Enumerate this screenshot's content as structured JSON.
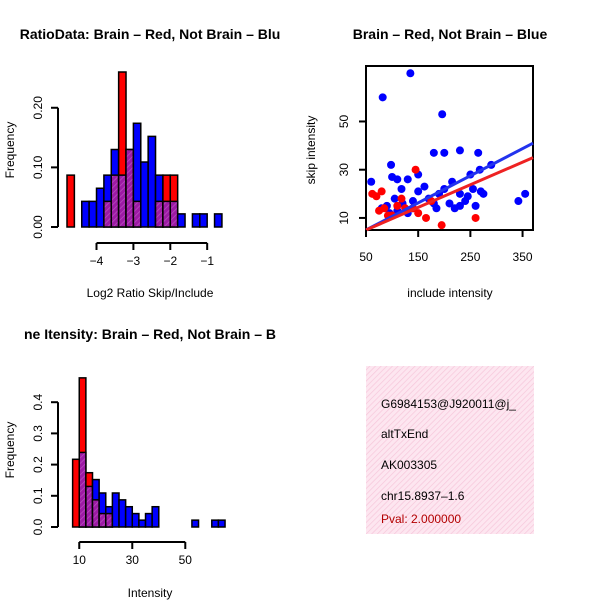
{
  "colors": {
    "red": "#ff0000",
    "blue": "#0000ff",
    "overlap": "#9d1aa5",
    "info_bg": "#fde2ee",
    "pval_text": "#b30000",
    "red_line": "#ee2222",
    "blue_line": "#2233ee"
  },
  "chart_data": [
    {
      "type": "bar",
      "title": "RatioData: Brain – Red, Not Brain – Blu",
      "xlabel": "Log2 Ratio Skip/Include",
      "ylabel": "Frequency",
      "xlim": [
        -4.8,
        -0.3
      ],
      "ylim": [
        0,
        0.26
      ],
      "xticks": [
        -4,
        -3,
        -2,
        -1
      ],
      "xtick_labels": [
        "−4",
        "−3",
        "−2",
        "−1"
      ],
      "yticks": [
        0,
        0.1,
        0.2
      ],
      "ytick_labels": [
        "0.00",
        "0.10",
        "0.20"
      ],
      "bin_width": 0.2,
      "series": [
        {
          "name": "Brain",
          "color": "red",
          "bins": [
            [
              -4.7,
              0.087
            ],
            [
              -3.7,
              0.043
            ],
            [
              -3.5,
              0.087
            ],
            [
              -3.3,
              0.26
            ],
            [
              -3.1,
              0.13
            ],
            [
              -2.9,
              0.043
            ],
            [
              -2.3,
              0.043
            ],
            [
              -2.1,
              0.087
            ],
            [
              -1.9,
              0.087
            ]
          ]
        },
        {
          "name": "Not Brain",
          "color": "blue",
          "bins": [
            [
              -4.3,
              0.043
            ],
            [
              -4.1,
              0.043
            ],
            [
              -3.9,
              0.065
            ],
            [
              -3.7,
              0.087
            ],
            [
              -3.5,
              0.13
            ],
            [
              -3.3,
              0.087
            ],
            [
              -3.1,
              0.13
            ],
            [
              -2.9,
              0.174
            ],
            [
              -2.7,
              0.109
            ],
            [
              -2.5,
              0.152
            ],
            [
              -2.3,
              0.087
            ],
            [
              -2.1,
              0.043
            ],
            [
              -1.9,
              0.043
            ],
            [
              -1.7,
              0.022
            ],
            [
              -1.5,
              0.0
            ],
            [
              -1.3,
              0.022
            ],
            [
              -1.1,
              0.022
            ],
            [
              -0.7,
              0.022
            ]
          ]
        }
      ]
    },
    {
      "type": "scatter",
      "title": "Brain – Red, Not Brain – Blue",
      "xlabel": "include intensity",
      "ylabel": "skip intensity",
      "xlim": [
        50,
        370
      ],
      "ylim": [
        5,
        73
      ],
      "xticks": [
        50,
        150,
        250,
        350
      ],
      "yticks": [
        10,
        30,
        50
      ],
      "series": [
        {
          "name": "Not Brain",
          "color": "blue",
          "points": [
            [
              60,
              25
            ],
            [
              82,
              60
            ],
            [
              135,
              70
            ],
            [
              196,
              53
            ],
            [
              180,
              37
            ],
            [
              200,
              37
            ],
            [
              230,
              38
            ],
            [
              265,
              37
            ],
            [
              250,
              28
            ],
            [
              268,
              30
            ],
            [
              290,
              32
            ],
            [
              355,
              20
            ],
            [
              342,
              17
            ],
            [
              98,
              32
            ],
            [
              110,
              26
            ],
            [
              118,
              22
            ],
            [
              130,
              26
            ],
            [
              150,
              28
            ],
            [
              162,
              23
            ],
            [
              170,
              18
            ],
            [
              180,
              16
            ],
            [
              190,
              20
            ],
            [
              200,
              22
            ],
            [
              210,
              16
            ],
            [
              215,
              25
            ],
            [
              220,
              14
            ],
            [
              230,
              20
            ],
            [
              240,
              17
            ],
            [
              255,
              22
            ],
            [
              260,
              15
            ],
            [
              275,
              20
            ],
            [
              120,
              16
            ],
            [
              130,
              12
            ],
            [
              140,
              14
            ],
            [
              105,
              18
            ],
            [
              90,
              15
            ],
            [
              80,
              14
            ],
            [
              95,
              12
            ],
            [
              100,
              27
            ],
            [
              150,
              21
            ],
            [
              230,
              15
            ],
            [
              245,
              19
            ],
            [
              270,
              21
            ],
            [
              185,
              14
            ],
            [
              110,
              13
            ],
            [
              140,
              17
            ]
          ]
        },
        {
          "name": "Brain",
          "color": "red",
          "points": [
            [
              62,
              20
            ],
            [
              70,
              19
            ],
            [
              80,
              21
            ],
            [
              75,
              13
            ],
            [
              85,
              14
            ],
            [
              92,
              11
            ],
            [
              100,
              11
            ],
            [
              110,
              15
            ],
            [
              118,
              18
            ],
            [
              125,
              14
            ],
            [
              140,
              14
            ],
            [
              145,
              30
            ],
            [
              150,
              12
            ],
            [
              165,
              10
            ],
            [
              175,
              17
            ],
            [
              195,
              7
            ],
            [
              260,
              10
            ]
          ]
        }
      ],
      "fits": [
        {
          "name": "Not Brain",
          "color": "blue",
          "x": [
            50,
            370
          ],
          "y": [
            5,
            41
          ]
        },
        {
          "name": "Brain",
          "color": "red",
          "x": [
            50,
            370
          ],
          "y": [
            5,
            35
          ]
        }
      ]
    },
    {
      "type": "bar",
      "title": "ne Itensity: Brain – Red, Not Brain – B",
      "xlabel": "Intensity",
      "ylabel": "Frequency",
      "xlim": [
        5,
        68
      ],
      "ylim": [
        0,
        0.5
      ],
      "xticks": [
        10,
        30,
        50
      ],
      "yticks": [
        0,
        0.1,
        0.2,
        0.3,
        0.4
      ],
      "ytick_labels": [
        "0.0",
        "0.1",
        "0.2",
        "0.3",
        "0.4"
      ],
      "bin_width": 2.5,
      "series": [
        {
          "name": "Brain",
          "color": "red",
          "bins": [
            [
              8.75,
              0.217
            ],
            [
              11.25,
              0.478
            ],
            [
              13.75,
              0.174
            ],
            [
              16.25,
              0.087
            ],
            [
              18.75,
              0.043
            ],
            [
              21.25,
              0.043
            ]
          ]
        },
        {
          "name": "Not Brain",
          "color": "blue",
          "bins": [
            [
              11.25,
              0.239
            ],
            [
              13.75,
              0.13
            ],
            [
              16.25,
              0.152
            ],
            [
              18.75,
              0.109
            ],
            [
              21.25,
              0.065
            ],
            [
              23.75,
              0.109
            ],
            [
              26.25,
              0.087
            ],
            [
              28.75,
              0.065
            ],
            [
              31.25,
              0.043
            ],
            [
              33.75,
              0.022
            ],
            [
              36.25,
              0.043
            ],
            [
              38.75,
              0.065
            ],
            [
              53.75,
              0.022
            ],
            [
              61.25,
              0.022
            ],
            [
              63.75,
              0.022
            ]
          ]
        }
      ]
    }
  ],
  "info": {
    "line1": "G6984153@J920011@j_",
    "line2": "altTxEnd",
    "line3": "AK003305",
    "line4": "chr15.8937–1.6",
    "pval": "Pval: 2.000000"
  }
}
